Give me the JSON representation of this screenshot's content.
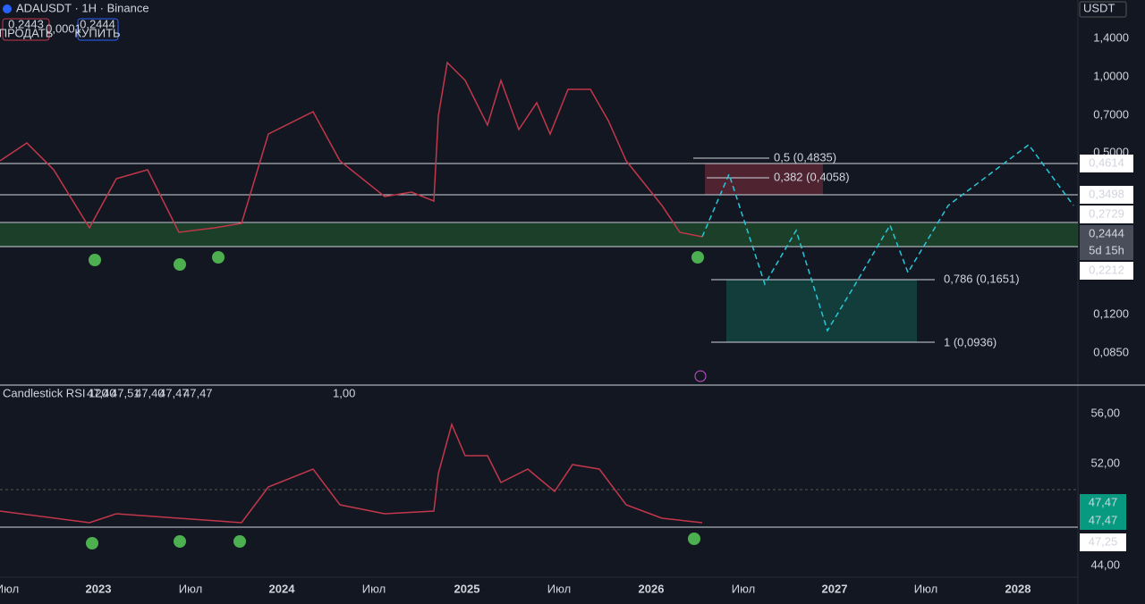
{
  "header": {
    "symbol": "ADAUSDT · 1H · Binance",
    "sell_price": "0,2443",
    "sell_label": "ПРОДАТЬ",
    "spread": "0,0001",
    "buy_price": "0,2444",
    "buy_label": "КУПИТЬ",
    "currency": "USDT"
  },
  "price_axis": [
    "1,4000",
    "1,0000",
    "0,7000",
    "0,5000",
    "0,1200",
    "0,0850"
  ],
  "price_tags": [
    "0,4614",
    "0,3498",
    "0,2729",
    "0,2444",
    "5d 15h",
    "0,2212"
  ],
  "fib_levels": [
    "0,5 (0,4835)",
    "0,382 (0,4058)",
    "0,786 (0,1651)",
    "1 (0,0936)"
  ],
  "rsi": {
    "title": "Candlestick RSI 120",
    "legend": [
      "47,40",
      "47,51",
      "47,40",
      "47,47",
      "47,47",
      "1,00"
    ],
    "axis": [
      "56,00",
      "52,00",
      "44,00"
    ],
    "tags": [
      "47,47",
      "47,47",
      "47,25"
    ]
  },
  "time_axis": [
    "Июл",
    "2023",
    "Июл",
    "2024",
    "Июл",
    "2025",
    "Июл",
    "2026",
    "Июл",
    "2027",
    "Июл",
    "2028"
  ]
}
